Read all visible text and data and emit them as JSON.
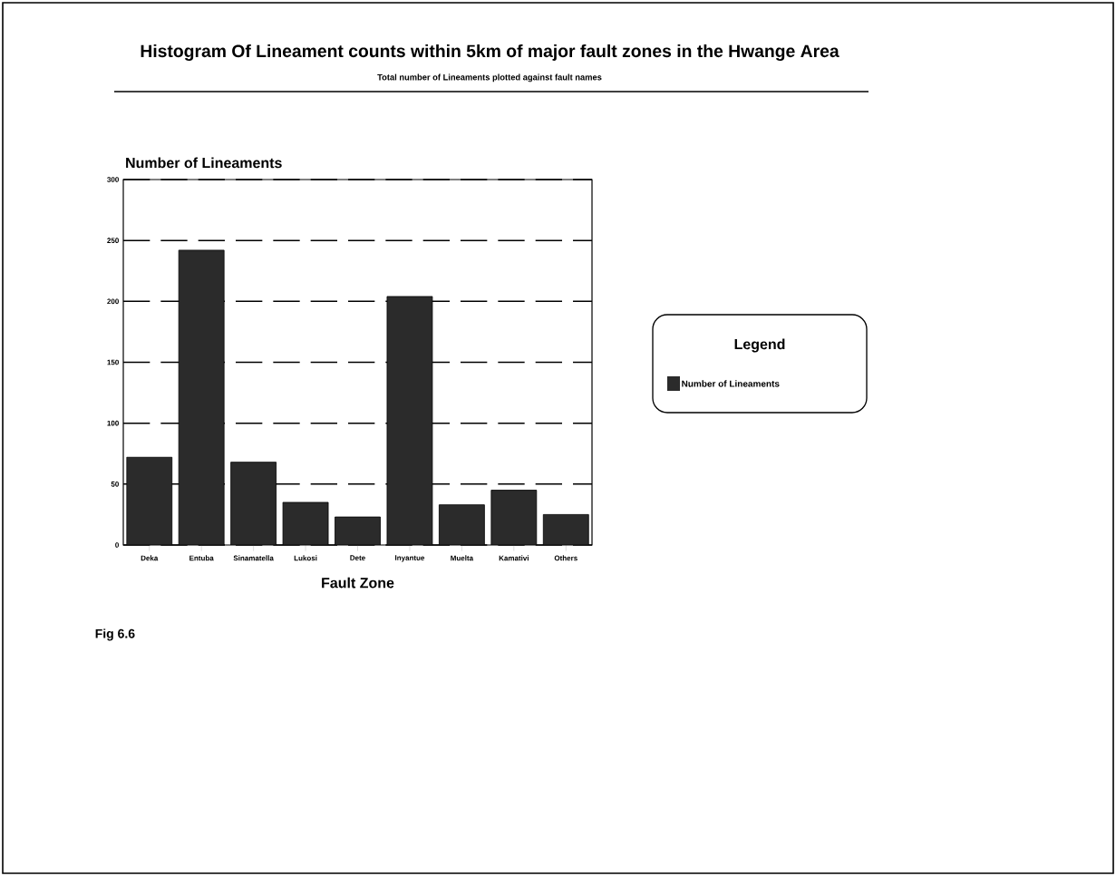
{
  "chart_data": {
    "type": "bar",
    "title": "Histogram Of Lineament counts within 5km of major fault zones in the Hwange Area",
    "subtitle": "Total number of Lineaments plotted against fault names",
    "xlabel": "Fault Zone",
    "ylabel": "Number of Lineaments",
    "legend_title": "Legend",
    "categories": [
      "Deka",
      "Entuba",
      "Sinamatella",
      "Lukosi",
      "Dete",
      "Inyantue",
      "Muelta",
      "Kamativi",
      "Others"
    ],
    "series": [
      {
        "name": "Number of Lineaments",
        "color": "#2b2b2b",
        "values": [
          72,
          242,
          68,
          35,
          23,
          204,
          33,
          45,
          25
        ]
      }
    ],
    "ylim": [
      0,
      300
    ],
    "yticks": [
      0,
      50,
      100,
      150,
      200,
      250,
      300
    ],
    "grid": "y",
    "legend": "right",
    "annotations": [
      "Fig 6.6"
    ]
  }
}
